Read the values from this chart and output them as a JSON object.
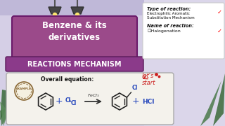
{
  "bg_color": "#e8e4f0",
  "title_box_color": "#9b4a8a",
  "title_text": "Benzene & its\nderivatives",
  "subtitle_box_color": "#8b3a8a",
  "subtitle_text": "REACTIONS MECHANISM",
  "info_box_bg": "#ffffff",
  "type_label": "Type of reaction:",
  "type_value": "Electrophilic Aromatic\nSubstitution Mechanism",
  "name_label": "Name of reaction:",
  "name_value": "☐Halogenation",
  "lets_start": "let's\nstart",
  "overall_label": "Overall equation:",
  "wall_color": "#ddd8ea",
  "accent_purple": "#7a3b7a"
}
